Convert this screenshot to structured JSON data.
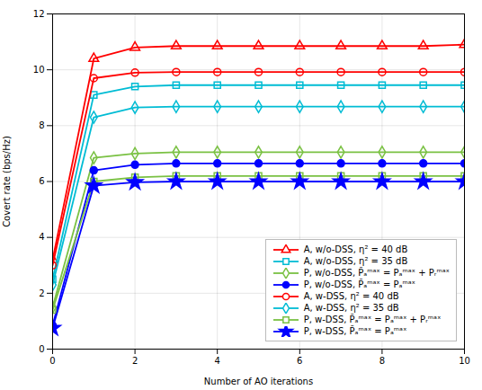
{
  "chart_data": {
    "type": "line",
    "x": [
      0,
      1,
      2,
      3,
      4,
      5,
      6,
      7,
      8,
      9,
      10
    ],
    "series": [
      {
        "name": "A, w/o-DSS, η² = 40 dB",
        "color": "#ff0000",
        "marker": "triangle-open",
        "values": [
          3.2,
          10.4,
          10.8,
          10.85,
          10.85,
          10.85,
          10.85,
          10.85,
          10.85,
          10.85,
          10.9
        ]
      },
      {
        "name": "A, w/o-DSS, η² = 35 dB",
        "color": "#00bcd4",
        "marker": "square-open",
        "values": [
          2.5,
          9.1,
          9.4,
          9.45,
          9.45,
          9.45,
          9.45,
          9.45,
          9.45,
          9.45,
          9.45
        ]
      },
      {
        "name": "P, w/o-DSS, P̃ₐᵐᵃˣ = Pₐᵐᵃˣ + Pᵣᵐᵃˣ",
        "color": "#7ac143",
        "marker": "diamond-open",
        "values": [
          1.5,
          6.85,
          7.0,
          7.05,
          7.05,
          7.05,
          7.05,
          7.05,
          7.05,
          7.05,
          7.05
        ]
      },
      {
        "name": "P, w/o-DSS, P̃ₐᵐᵃˣ = Pₐᵐᵃˣ",
        "color": "#0000ff",
        "marker": "circle",
        "values": [
          0.85,
          6.4,
          6.6,
          6.65,
          6.65,
          6.65,
          6.65,
          6.65,
          6.65,
          6.65,
          6.65
        ]
      },
      {
        "name": "A, w-DSS, η² = 40 dB",
        "color": "#ff0000",
        "marker": "circle-open",
        "values": [
          3.0,
          9.7,
          9.9,
          9.92,
          9.92,
          9.92,
          9.92,
          9.92,
          9.92,
          9.92,
          9.92
        ]
      },
      {
        "name": "A, w-DSS, η² = 35 dB",
        "color": "#00bcd4",
        "marker": "diamond-open",
        "values": [
          2.3,
          8.3,
          8.65,
          8.68,
          8.68,
          8.68,
          8.68,
          8.68,
          8.68,
          8.68,
          8.68
        ]
      },
      {
        "name": "P, w-DSS, P̃ₐᵐᵃˣ = Pₐᵐᵃˣ + Pᵣᵐᵃˣ",
        "color": "#7ac143",
        "marker": "square-open",
        "values": [
          1.4,
          6.0,
          6.15,
          6.2,
          6.2,
          6.2,
          6.2,
          6.2,
          6.2,
          6.2,
          6.2
        ]
      },
      {
        "name": "P, w-DSS, P̃ₐᵐᵃˣ = Pₐᵐᵃˣ",
        "color": "#0000ff",
        "marker": "star",
        "values": [
          0.75,
          5.85,
          5.97,
          6.0,
          6.0,
          6.0,
          6.0,
          6.0,
          6.0,
          6.0,
          6.0
        ]
      }
    ],
    "xlabel": "Number of AO iterations",
    "ylabel": "Covert rate (bps/Hz)",
    "xlim": [
      0,
      10
    ],
    "ylim": [
      0,
      12
    ],
    "xticks": [
      0,
      2,
      4,
      6,
      8,
      10
    ],
    "yticks": [
      0,
      2,
      4,
      6,
      8,
      10,
      12
    ],
    "grid": true,
    "legend": "lower right"
  }
}
